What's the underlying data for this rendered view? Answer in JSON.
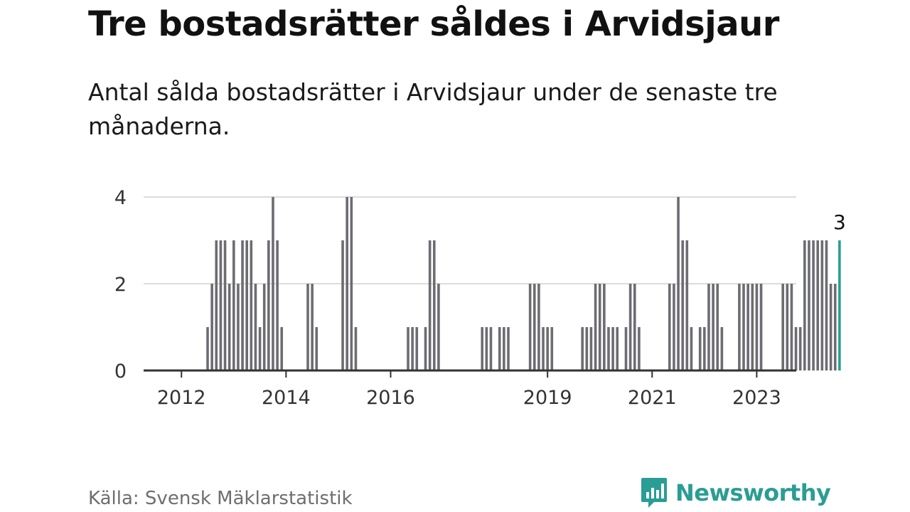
{
  "header": {
    "title": "Tre bostadsrätter såldes i Arvidsjaur",
    "subtitle": "Antal sålda bostadsrätter i Arvidsjaur under de senaste tre månaderna."
  },
  "footer": {
    "source": "Källa: Svensk Mäklarstatistik",
    "brand": "Newsworthy"
  },
  "colors": {
    "bar": "#6d6c72",
    "highlight": "#2a9d94",
    "grid": "#dcdcdc",
    "axis": "#333333"
  },
  "chart_data": {
    "type": "bar",
    "x_unit": "month",
    "start_month": "2011-05",
    "values": [
      0,
      0,
      0,
      0,
      0,
      0,
      0,
      0,
      0,
      0,
      0,
      0,
      0,
      0,
      1,
      2,
      3,
      3,
      3,
      2,
      3,
      2,
      3,
      3,
      3,
      2,
      1,
      2,
      3,
      4,
      3,
      1,
      0,
      0,
      0,
      0,
      0,
      2,
      2,
      1,
      0,
      0,
      0,
      0,
      0,
      3,
      4,
      4,
      1,
      0,
      0,
      0,
      0,
      0,
      0,
      0,
      0,
      0,
      0,
      0,
      1,
      1,
      1,
      0,
      1,
      3,
      3,
      2,
      0,
      0,
      0,
      0,
      0,
      0,
      0,
      0,
      0,
      1,
      1,
      1,
      0,
      1,
      1,
      1,
      0,
      0,
      0,
      0,
      2,
      2,
      2,
      1,
      1,
      1,
      0,
      0,
      0,
      0,
      0,
      0,
      1,
      1,
      1,
      2,
      2,
      2,
      1,
      1,
      1,
      0,
      1,
      2,
      2,
      1,
      0,
      0,
      0,
      0,
      0,
      0,
      2,
      2,
      4,
      3,
      3,
      1,
      0,
      1,
      1,
      2,
      2,
      2,
      1,
      0,
      0,
      0,
      2,
      2,
      2,
      2,
      2,
      2,
      0,
      0,
      0,
      0,
      2,
      2,
      2,
      1,
      1,
      3,
      3,
      3,
      3,
      3,
      3,
      2,
      2,
      3
    ],
    "highlight_last": true,
    "last_label": "3",
    "x_ticks": [
      "2012",
      "2014",
      "2016",
      "2019",
      "2021",
      "2023"
    ],
    "y_ticks": [
      0,
      2,
      4
    ],
    "ylim": [
      0,
      4
    ],
    "xlabel": "",
    "ylabel": "",
    "grid": true
  }
}
